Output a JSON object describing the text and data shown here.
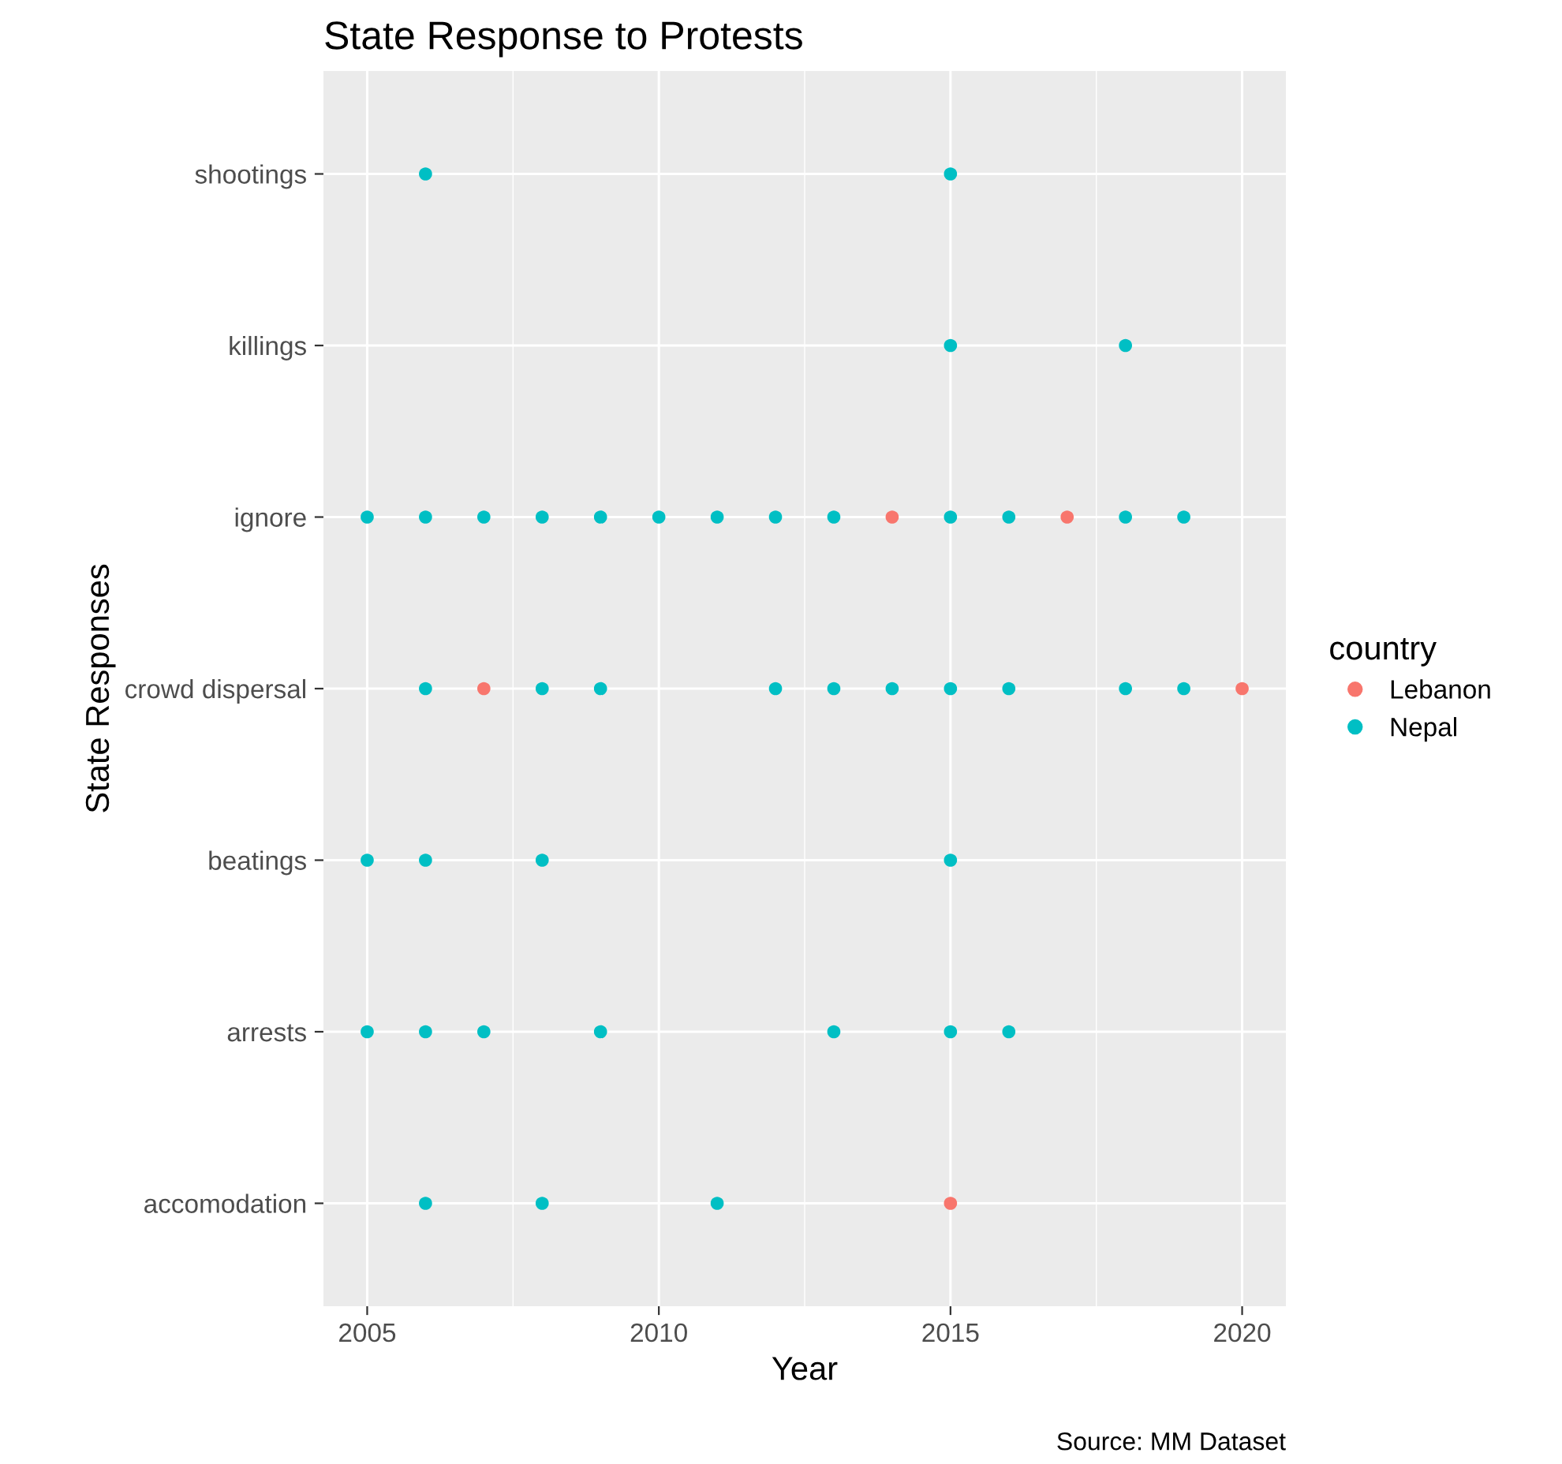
{
  "chart_data": {
    "type": "scatter",
    "orientation": "horizontal",
    "title": "State Response to Protests",
    "xlabel": "Year",
    "ylabel": "State Responses",
    "legend_title": "country",
    "legend": "right",
    "grid": true,
    "marker": "circle",
    "categories": [
      "shootings",
      "killings",
      "ignore",
      "crowd dispersal",
      "beatings",
      "arrests",
      "accomodation"
    ],
    "xlim": [
      2004.25,
      2020.75
    ],
    "xticks": [
      2005,
      2010,
      2015,
      2020
    ],
    "annotations": [
      "Source: MM Dataset"
    ],
    "series": [
      {
        "name": "Lebanon",
        "color": "#f8766d",
        "values": [
          null,
          null,
          2014,
          2007,
          null,
          null,
          2015
        ]
      },
      {
        "color": "#f8766d",
        "values": [
          null,
          null,
          2017,
          2020,
          null,
          null,
          null
        ]
      },
      {
        "name": "Nepal",
        "color": "#00bfc4",
        "values": [
          2006,
          2015,
          2005,
          2006,
          2005,
          2005,
          2006
        ]
      },
      {
        "color": "#00bfc4",
        "values": [
          2015,
          2018,
          2006,
          2008,
          2006,
          2006,
          2008
        ]
      },
      {
        "color": "#00bfc4",
        "values": [
          null,
          null,
          2007,
          2009,
          2008,
          2007,
          2011
        ]
      },
      {
        "color": "#00bfc4",
        "values": [
          null,
          null,
          2008,
          2012,
          2015,
          2009,
          null
        ]
      },
      {
        "color": "#00bfc4",
        "values": [
          null,
          null,
          2009,
          2013,
          null,
          2013,
          null
        ]
      },
      {
        "color": "#00bfc4",
        "values": [
          null,
          null,
          2010,
          2014,
          null,
          2015,
          null
        ]
      },
      {
        "color": "#00bfc4",
        "values": [
          null,
          null,
          2011,
          2015,
          null,
          2016,
          null
        ]
      },
      {
        "color": "#00bfc4",
        "values": [
          null,
          null,
          2012,
          2016,
          null,
          null,
          null
        ]
      },
      {
        "color": "#00bfc4",
        "values": [
          null,
          null,
          2013,
          2018,
          null,
          null,
          null
        ]
      },
      {
        "color": "#00bfc4",
        "values": [
          null,
          null,
          2015,
          2019,
          null,
          null,
          null
        ]
      },
      {
        "color": "#00bfc4",
        "values": [
          null,
          null,
          2016,
          null,
          null,
          null,
          null
        ]
      },
      {
        "color": "#00bfc4",
        "values": [
          null,
          null,
          2018,
          null,
          null,
          null,
          null
        ]
      },
      {
        "color": "#00bfc4",
        "values": [
          null,
          null,
          2019,
          null,
          null,
          null,
          null
        ]
      }
    ]
  }
}
